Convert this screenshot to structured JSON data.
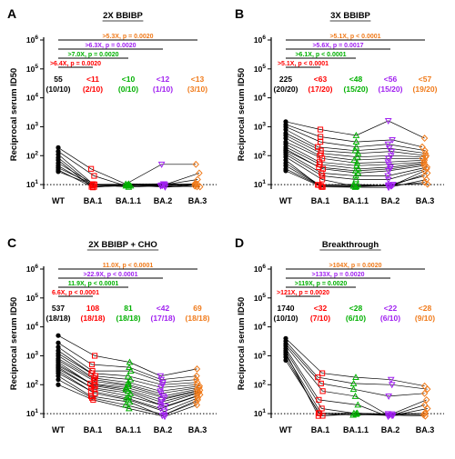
{
  "figure": {
    "xlabel": "",
    "ylabel": "Reciprocal serum ID50",
    "categories": [
      "WT",
      "BA.1",
      "BA.1.1",
      "BA.2",
      "BA.3"
    ],
    "colors": {
      "WT": "#000000",
      "BA.1": "#ff0000",
      "BA.1.1": "#00b000",
      "BA.2": "#a020f0",
      "BA.3": "#f07a1a"
    },
    "marker_shapes": {
      "WT": "circle",
      "BA.1": "square",
      "BA.1.1": "triangle-up",
      "BA.2": "triangle-down",
      "BA.3": "diamond"
    },
    "y_ticks": [
      {
        "base": "10",
        "exp": "1"
      },
      {
        "base": "10",
        "exp": "2"
      },
      {
        "base": "10",
        "exp": "3"
      },
      {
        "base": "10",
        "exp": "4"
      },
      {
        "base": "10",
        "exp": "5"
      },
      {
        "base": "10",
        "exp": "6"
      }
    ],
    "detection_limit": 10
  },
  "chart_data": [
    {
      "type": "scatter",
      "panel": "A",
      "title": "2X BBIBP",
      "yscale": "log",
      "ylim": [
        7,
        1000000
      ],
      "gmt_labels": [
        "55",
        "<11",
        "<10",
        "<12",
        "<13"
      ],
      "fraction_labels": [
        "(10/10)",
        "(2/10)",
        "(0/10)",
        "(1/10)",
        "(3/10)"
      ],
      "comparisons": [
        {
          "target": "BA.3",
          "text": ">5.3X, p = 0.0020"
        },
        {
          "target": "BA.2",
          "text": ">6.3X, p = 0.0020"
        },
        {
          "target": "BA.1.1",
          "text": ">7.0X, p = 0.0020"
        },
        {
          "target": "BA.1",
          "text": ">6.4X, p = 0.0020"
        }
      ],
      "series": [
        {
          "name": "WT",
          "values": [
            190,
            140,
            110,
            85,
            70,
            55,
            45,
            38,
            32,
            28
          ]
        },
        {
          "name": "BA.1",
          "values": [
            35,
            20,
            10,
            10,
            10,
            10,
            10,
            10,
            10,
            10
          ]
        },
        {
          "name": "BA.1.1",
          "values": [
            10,
            10,
            10,
            10,
            10,
            10,
            10,
            10,
            10,
            10
          ]
        },
        {
          "name": "BA.2",
          "values": [
            50,
            10,
            10,
            10,
            10,
            10,
            10,
            10,
            10,
            10
          ]
        },
        {
          "name": "BA.3",
          "values": [
            50,
            25,
            15,
            10,
            10,
            10,
            10,
            10,
            10,
            10
          ]
        }
      ]
    },
    {
      "type": "scatter",
      "panel": "B",
      "title": "3X BBIBP",
      "yscale": "log",
      "ylim": [
        7,
        1000000
      ],
      "gmt_labels": [
        "225",
        "<63",
        "<48",
        "<56",
        "<57"
      ],
      "fraction_labels": [
        "(20/20)",
        "(17/20)",
        "(15/20)",
        "(15/20)",
        "(19/20)"
      ],
      "comparisons": [
        {
          "target": "BA.3",
          "text": ">5.1X, p < 0.0001"
        },
        {
          "target": "BA.2",
          "text": ">5.6X, p = 0.0017"
        },
        {
          "target": "BA.1.1",
          "text": ">6.1X, p < 0.0001"
        },
        {
          "target": "BA.1",
          "text": ">5.1X, p < 0.0001"
        }
      ],
      "series": [
        {
          "name": "WT",
          "values": [
            1500,
            1200,
            1000,
            800,
            600,
            500,
            400,
            300,
            250,
            200,
            170,
            150,
            130,
            110,
            90,
            70,
            55,
            45,
            35,
            30
          ]
        },
        {
          "name": "BA.1",
          "values": [
            800,
            450,
            300,
            200,
            150,
            120,
            100,
            80,
            60,
            50,
            40,
            35,
            25,
            20,
            15,
            10,
            10,
            10,
            10,
            10
          ]
        },
        {
          "name": "BA.1.1",
          "values": [
            500,
            300,
            200,
            150,
            120,
            90,
            70,
            55,
            45,
            35,
            30,
            25,
            20,
            15,
            10,
            10,
            10,
            10,
            10,
            10
          ]
        },
        {
          "name": "BA.2",
          "values": [
            1600,
            350,
            250,
            180,
            140,
            100,
            80,
            60,
            50,
            40,
            35,
            30,
            20,
            15,
            10,
            10,
            10,
            10,
            10,
            10
          ]
        },
        {
          "name": "BA.3",
          "values": [
            400,
            200,
            150,
            120,
            100,
            90,
            80,
            70,
            60,
            55,
            50,
            45,
            40,
            35,
            30,
            25,
            20,
            15,
            12,
            10
          ]
        }
      ]
    },
    {
      "type": "scatter",
      "panel": "C",
      "title": "2X BBIBP + CHO",
      "yscale": "log",
      "ylim": [
        7,
        1000000
      ],
      "gmt_labels": [
        "537",
        "108",
        "81",
        "<42",
        "69"
      ],
      "fraction_labels": [
        "(18/18)",
        "(18/18)",
        "(18/18)",
        "(17/18)",
        "(18/18)"
      ],
      "comparisons": [
        {
          "target": "BA.3",
          "text": "11.0X, p < 0.0001"
        },
        {
          "target": "BA.2",
          "text": ">22.9X, p < 0.0001"
        },
        {
          "target": "BA.1.1",
          "text": "11.9X, p < 0.0001"
        },
        {
          "target": "BA.1",
          "text": "6.6X, p < 0.0001"
        }
      ],
      "series": [
        {
          "name": "WT",
          "values": [
            5000,
            2800,
            2000,
            1500,
            1200,
            1000,
            800,
            700,
            600,
            500,
            450,
            400,
            350,
            300,
            250,
            200,
            150,
            100
          ]
        },
        {
          "name": "BA.1",
          "values": [
            1000,
            500,
            300,
            250,
            200,
            170,
            150,
            130,
            110,
            100,
            90,
            80,
            70,
            60,
            50,
            40,
            35,
            30
          ]
        },
        {
          "name": "BA.1.1",
          "values": [
            600,
            400,
            300,
            200,
            150,
            120,
            100,
            90,
            80,
            70,
            60,
            50,
            40,
            35,
            30,
            25,
            20,
            15
          ]
        },
        {
          "name": "BA.2",
          "values": [
            200,
            150,
            120,
            100,
            80,
            60,
            50,
            40,
            35,
            30,
            25,
            20,
            18,
            15,
            12,
            10,
            10,
            10
          ]
        },
        {
          "name": "BA.3",
          "values": [
            350,
            200,
            150,
            120,
            100,
            90,
            80,
            70,
            65,
            60,
            55,
            50,
            45,
            40,
            35,
            30,
            25,
            20
          ]
        }
      ]
    },
    {
      "type": "scatter",
      "panel": "D",
      "title": "Breakthrough",
      "yscale": "log",
      "ylim": [
        7,
        1000000
      ],
      "gmt_labels": [
        "1740",
        "<32",
        "<28",
        "<22",
        "<28"
      ],
      "fraction_labels": [
        "(10/10)",
        "(7/10)",
        "(6/10)",
        "(6/10)",
        "(9/10)"
      ],
      "comparisons": [
        {
          "target": "BA.3",
          "text": ">104X, p = 0.0020"
        },
        {
          "target": "BA.2",
          "text": ">133X, p = 0.0020"
        },
        {
          "target": "BA.1.1",
          "text": ">119X, p = 0.0020"
        },
        {
          "target": "BA.1",
          "text": ">121X, p = 0.0020"
        }
      ],
      "series": [
        {
          "name": "WT",
          "values": [
            4000,
            3200,
            2600,
            2200,
            1800,
            1500,
            1300,
            1100,
            900,
            700
          ]
        },
        {
          "name": "BA.1",
          "values": [
            250,
            180,
            110,
            60,
            30,
            15,
            10,
            10,
            10,
            10
          ]
        },
        {
          "name": "BA.1.1",
          "values": [
            180,
            110,
            70,
            40,
            20,
            10,
            10,
            10,
            10,
            10
          ]
        },
        {
          "name": "BA.2",
          "values": [
            150,
            100,
            40,
            10,
            10,
            10,
            10,
            10,
            10,
            10
          ]
        },
        {
          "name": "BA.3",
          "values": [
            90,
            70,
            50,
            30,
            20,
            15,
            10,
            10,
            10,
            10
          ]
        }
      ]
    }
  ]
}
